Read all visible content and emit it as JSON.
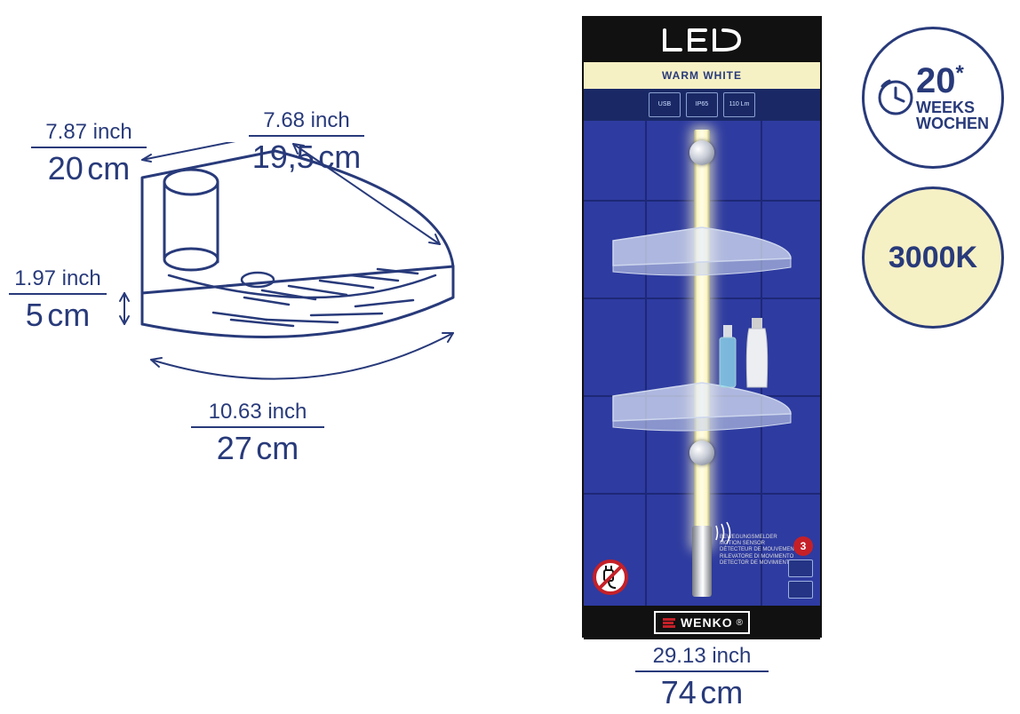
{
  "colors": {
    "line": "#283a7a",
    "panel_bg": "#2e3ba0",
    "tile_line": "#1d2877",
    "warm_bg": "#f6f0c5",
    "black": "#111111",
    "red": "#c52028",
    "chrome_light": "#eceef2",
    "chrome_dark": "#8f95a4"
  },
  "diagram": {
    "width": {
      "inch": "7.87 inch",
      "cm": "20",
      "rule": 130
    },
    "depth": {
      "inch": "7.68 inch",
      "cm": "19,5",
      "rule": 130
    },
    "height": {
      "inch": "1.97 inch",
      "cm": "5",
      "rule": 110
    },
    "front": {
      "inch": "10.63 inch",
      "cm": "27",
      "rule": 150
    }
  },
  "product": {
    "led_label": "LED",
    "warm_label": "WARM WHITE",
    "icons": [
      "USB",
      "IP65",
      "110 Lm"
    ],
    "warranty": "3",
    "brand": "WENKO",
    "sensor_label": "BEWEGUNGSMELDER\nMOTION SENSOR\nDÉTECTEUR DE MOUVEMENT\nRILEVATORE DI MOVIMENTO\nDETECTOR DE MOVIMIENTO",
    "height_dim": {
      "inch": "29.13 inch",
      "cm": "74",
      "rule": 150
    }
  },
  "badges": {
    "weeks": {
      "value": "20",
      "star": "*",
      "line1": "WEEKS",
      "line2": "WOCHEN"
    },
    "kelvin": "3000K"
  }
}
